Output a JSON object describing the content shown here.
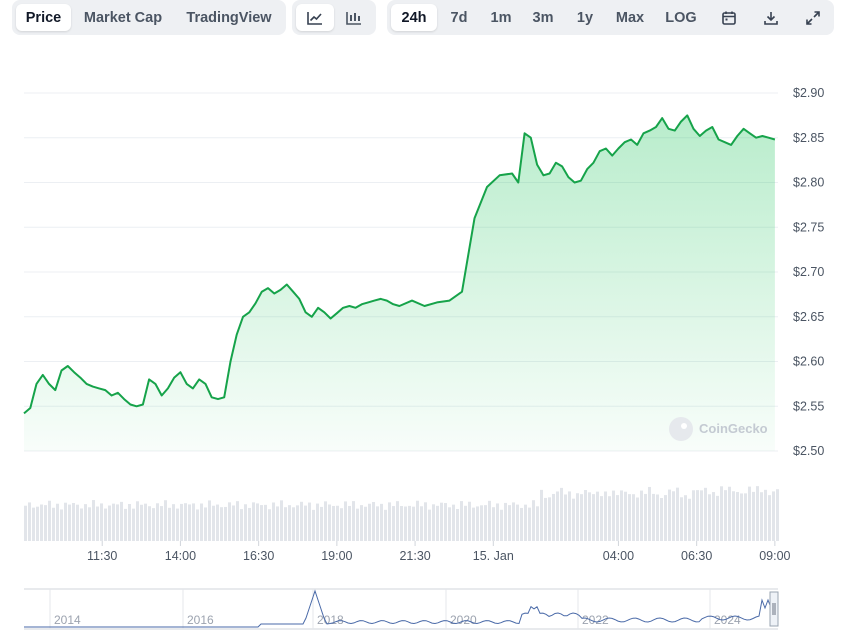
{
  "toolbar": {
    "metric_tabs": [
      {
        "label": "Price",
        "active": true
      },
      {
        "label": "Market Cap",
        "active": false
      },
      {
        "label": "TradingView",
        "active": false
      }
    ],
    "chart_type_icons": [
      "line-chart-icon",
      "candlestick-chart-icon"
    ],
    "ranges": [
      {
        "label": "24h",
        "active": true
      },
      {
        "label": "7d",
        "active": false
      },
      {
        "label": "1m",
        "active": false
      },
      {
        "label": "3m",
        "active": false
      },
      {
        "label": "1y",
        "active": false
      },
      {
        "label": "Max",
        "active": false
      },
      {
        "label": "LOG",
        "active": false
      }
    ],
    "tool_icons": [
      "calendar-icon",
      "download-icon",
      "fullscreen-icon"
    ]
  },
  "watermark": "CoinGecko",
  "colors": {
    "line": "#16a34a",
    "fill": "#22c55e",
    "grid": "#eceff3",
    "volume": "#e2e5ea",
    "navigator_line": "#4a6aa8"
  },
  "chart_data": {
    "type": "area",
    "y_ticks": [
      "$2.90",
      "$2.85",
      "$2.80",
      "$2.75",
      "$2.70",
      "$2.65",
      "$2.60",
      "$2.55",
      "$2.50"
    ],
    "ylim": [
      2.5,
      2.9
    ],
    "x_ticks": [
      "11:30",
      "14:00",
      "16:30",
      "19:00",
      "21:30",
      "15. Jan",
      "04:00",
      "06:30",
      "09:00"
    ],
    "x_tick_hours": [
      11.5,
      14,
      16.5,
      19,
      21.5,
      24,
      28,
      30.5,
      33
    ],
    "xlim": [
      9.0,
      33.1
    ],
    "series": [
      {
        "x": [
          9.0,
          9.2,
          9.4,
          9.6,
          9.8,
          10.0,
          10.2,
          10.4,
          10.6,
          10.8,
          11.0,
          11.2,
          11.4,
          11.6,
          11.8,
          12.0,
          12.2,
          12.4,
          12.6,
          12.8,
          13.0,
          13.2,
          13.4,
          13.6,
          13.8,
          14.0,
          14.2,
          14.4,
          14.6,
          14.8,
          15.0,
          15.2,
          15.4,
          15.6,
          15.8,
          16.0,
          16.2,
          16.4,
          16.6,
          16.8,
          17.0,
          17.2,
          17.4,
          17.6,
          17.8,
          18.0,
          18.2,
          18.4,
          18.6,
          18.8,
          19.0,
          19.2,
          19.4,
          19.6,
          19.8,
          20.0,
          20.2,
          20.4,
          20.6,
          20.8,
          21.0,
          21.4,
          21.8,
          22.2,
          22.6,
          23.0,
          23.4,
          23.8,
          24.2,
          24.6,
          24.8,
          25.0,
          25.2,
          25.4,
          25.6,
          25.8,
          26.0,
          26.2,
          26.4,
          26.6,
          26.8,
          27.0,
          27.2,
          27.4,
          27.6,
          27.8,
          28.0,
          28.2,
          28.4,
          28.6,
          28.8,
          29.0,
          29.2,
          29.4,
          29.6,
          29.8,
          30.0,
          30.2,
          30.4,
          30.6,
          30.8,
          31.0,
          31.2,
          31.4,
          31.6,
          31.8,
          32.0,
          32.2,
          32.4,
          32.6,
          32.8,
          33.0
        ],
        "y": [
          2.542,
          2.548,
          2.575,
          2.585,
          2.575,
          2.568,
          2.59,
          2.595,
          2.588,
          2.582,
          2.575,
          2.572,
          2.57,
          2.568,
          2.562,
          2.565,
          2.558,
          2.552,
          2.55,
          2.552,
          2.58,
          2.575,
          2.562,
          2.57,
          2.582,
          2.588,
          2.575,
          2.57,
          2.58,
          2.575,
          2.56,
          2.558,
          2.56,
          2.6,
          2.63,
          2.65,
          2.655,
          2.665,
          2.678,
          2.682,
          2.676,
          2.68,
          2.686,
          2.678,
          2.67,
          2.655,
          2.65,
          2.66,
          2.655,
          2.648,
          2.654,
          2.66,
          2.662,
          2.66,
          2.664,
          2.666,
          2.668,
          2.67,
          2.668,
          2.664,
          2.662,
          2.668,
          2.662,
          2.666,
          2.668,
          2.678,
          2.76,
          2.795,
          2.808,
          2.81,
          2.8,
          2.855,
          2.85,
          2.82,
          2.808,
          2.81,
          2.822,
          2.818,
          2.806,
          2.8,
          2.802,
          2.815,
          2.822,
          2.835,
          2.838,
          2.83,
          2.838,
          2.845,
          2.848,
          2.842,
          2.855,
          2.858,
          2.862,
          2.872,
          2.86,
          2.858,
          2.868,
          2.875,
          2.86,
          2.852,
          2.858,
          2.862,
          2.848,
          2.845,
          2.842,
          2.852,
          2.86,
          2.855,
          2.85,
          2.852,
          2.85,
          2.848
        ]
      }
    ],
    "navigator": {
      "x_ticks": [
        "2014",
        "2016",
        "2018",
        "2020",
        "2022",
        "2024"
      ]
    }
  }
}
